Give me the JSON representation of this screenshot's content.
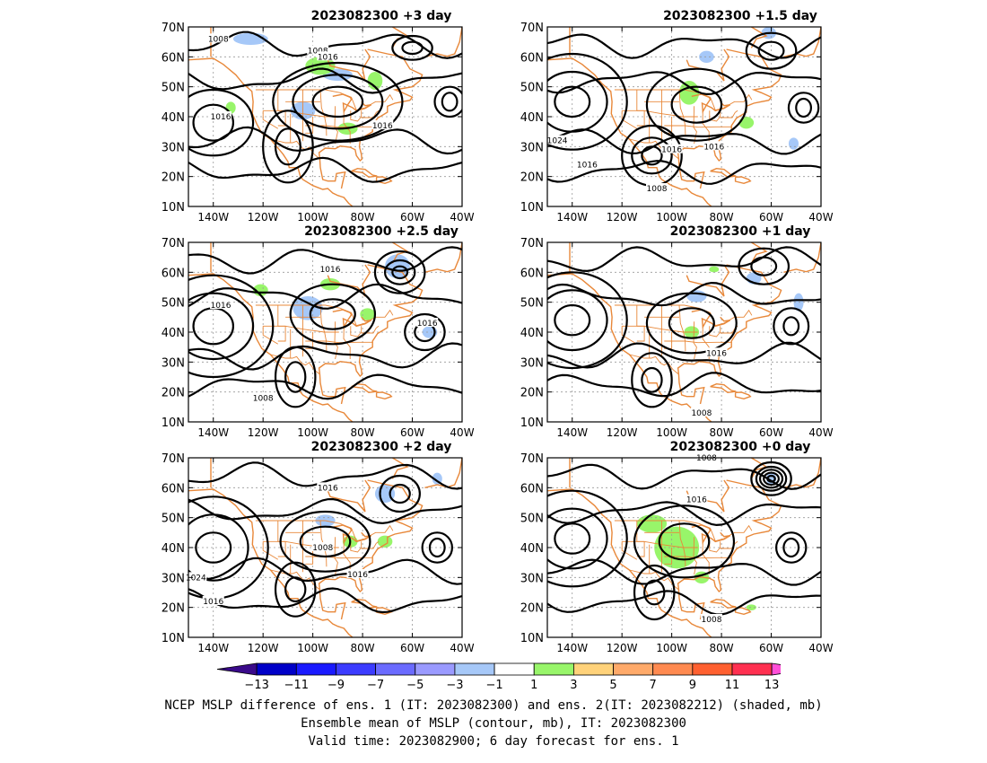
{
  "panels": [
    {
      "title": "2023082300 +3 day",
      "contour_labels": [
        "1008",
        "1008",
        "1016",
        "1016",
        "1016"
      ],
      "shaded": [
        {
          "kind": "neg",
          "lon": -104,
          "lat": 42,
          "rx": 5,
          "ry": 3
        },
        {
          "kind": "neg",
          "lon": -90,
          "lat": 54,
          "rx": 6,
          "ry": 2
        },
        {
          "kind": "pos",
          "lon": -97,
          "lat": 57,
          "rx": 6,
          "ry": 3
        },
        {
          "kind": "pos",
          "lon": -86,
          "lat": 36,
          "rx": 4,
          "ry": 2
        },
        {
          "kind": "neg",
          "lon": -125,
          "lat": 66,
          "rx": 7,
          "ry": 2
        },
        {
          "kind": "pos",
          "lon": -75,
          "lat": 52,
          "rx": 3,
          "ry": 3
        },
        {
          "kind": "pos",
          "lon": -133,
          "lat": 43,
          "rx": 2,
          "ry": 2
        }
      ]
    },
    {
      "title": "2023082300 +1.5 day",
      "contour_labels": [
        "1008",
        "1016",
        "1016",
        "1016",
        "1024"
      ],
      "shaded": [
        {
          "kind": "pos",
          "lon": -93,
          "lat": 48,
          "rx": 4,
          "ry": 4
        },
        {
          "kind": "neg",
          "lon": -86,
          "lat": 60,
          "rx": 3,
          "ry": 2
        },
        {
          "kind": "pos",
          "lon": -70,
          "lat": 38,
          "rx": 3,
          "ry": 2
        },
        {
          "kind": "neg",
          "lon": -61,
          "lat": 68,
          "rx": 3,
          "ry": 2
        },
        {
          "kind": "neg",
          "lon": -51,
          "lat": 31,
          "rx": 2,
          "ry": 2
        }
      ]
    },
    {
      "title": "2023082300 +2.5 day",
      "contour_labels": [
        "1016",
        "1016",
        "1016",
        "1008"
      ],
      "shaded": [
        {
          "kind": "neg",
          "lon": -102,
          "lat": 48,
          "rx": 6,
          "ry": 4
        },
        {
          "kind": "neg",
          "lon": -66,
          "lat": 62,
          "rx": 5,
          "ry": 4
        },
        {
          "kind": "pos",
          "lon": -93,
          "lat": 56,
          "rx": 4,
          "ry": 2
        },
        {
          "kind": "pos",
          "lon": -121,
          "lat": 54,
          "rx": 3,
          "ry": 2
        },
        {
          "kind": "pos",
          "lon": -78,
          "lat": 46,
          "rx": 3,
          "ry": 2
        },
        {
          "kind": "neg",
          "lon": -53,
          "lat": 40,
          "rx": 3,
          "ry": 2
        }
      ]
    },
    {
      "title": "2023082300 +1 day",
      "contour_labels": [
        "1016",
        "1008"
      ],
      "shaded": [
        {
          "kind": "neg",
          "lon": -90,
          "lat": 52,
          "rx": 4,
          "ry": 2
        },
        {
          "kind": "neg",
          "lon": -67,
          "lat": 58,
          "rx": 3,
          "ry": 2
        },
        {
          "kind": "pos",
          "lon": -92,
          "lat": 40,
          "rx": 3,
          "ry": 2
        },
        {
          "kind": "neg",
          "lon": -49,
          "lat": 50,
          "rx": 2,
          "ry": 3
        },
        {
          "kind": "pos",
          "lon": -83,
          "lat": 61,
          "rx": 2,
          "ry": 1
        }
      ]
    },
    {
      "title": "2023082300 +2 day",
      "contour_labels": [
        "1016",
        "1008",
        "1016",
        "1024",
        "1016"
      ],
      "shaded": [
        {
          "kind": "neg",
          "lon": -95,
          "lat": 49,
          "rx": 4,
          "ry": 2
        },
        {
          "kind": "neg",
          "lon": -71,
          "lat": 58,
          "rx": 4,
          "ry": 3
        },
        {
          "kind": "pos",
          "lon": -85,
          "lat": 42,
          "rx": 3,
          "ry": 2
        },
        {
          "kind": "pos",
          "lon": -71,
          "lat": 42,
          "rx": 3,
          "ry": 2
        },
        {
          "kind": "neg",
          "lon": -50,
          "lat": 63,
          "rx": 2,
          "ry": 2
        }
      ]
    },
    {
      "title": "2023082300 +0 day",
      "contour_labels": [
        "1008",
        "1016",
        "1008"
      ],
      "shaded": [
        {
          "kind": "pos",
          "lon": -98,
          "lat": 40,
          "rx": 9,
          "ry": 7
        },
        {
          "kind": "pos",
          "lon": -108,
          "lat": 48,
          "rx": 6,
          "ry": 3
        },
        {
          "kind": "pos",
          "lon": -88,
          "lat": 30,
          "rx": 3,
          "ry": 2
        },
        {
          "kind": "neg",
          "lon": -60,
          "lat": 63,
          "rx": 2,
          "ry": 2
        },
        {
          "kind": "pos",
          "lon": -68,
          "lat": 20,
          "rx": 2,
          "ry": 1
        }
      ]
    }
  ],
  "map": {
    "lon_ticks": [
      "140W",
      "120W",
      "100W",
      "80W",
      "60W",
      "40W"
    ],
    "lat_ticks": [
      "10N",
      "20N",
      "30N",
      "40N",
      "50N",
      "60N",
      "70N"
    ],
    "lon_range": [
      -150,
      -40
    ],
    "lat_range": [
      10,
      70
    ]
  },
  "colorbar": {
    "labels": [
      "−13",
      "−11",
      "−9",
      "−7",
      "−5",
      "−3",
      "−1",
      "1",
      "3",
      "5",
      "7",
      "9",
      "11",
      "13"
    ],
    "colors": [
      "#3a0a8a",
      "#0000c8",
      "#1a1aff",
      "#3c3cff",
      "#6b6bff",
      "#9a9aff",
      "#a6c8f8",
      "#ffffff",
      "#98f56a",
      "#ffd27a",
      "#ffaa6a",
      "#ff8a50",
      "#ff6030",
      "#ff3050",
      "#ff4fd8"
    ],
    "neg_color": "#a6c8f8",
    "pos_color": "#98f56a",
    "coast_color": "#e8883a"
  },
  "caption": {
    "line1": "NCEP MSLP difference of ens. 1 (IT: 2023082300) and ens. 2(IT: 2023082212) (shaded, mb)",
    "line2": "Ensemble mean of MSLP (contour, mb), IT: 2023082300",
    "line3": "Valid time: 2023082900; 6 day forecast for ens. 1"
  }
}
